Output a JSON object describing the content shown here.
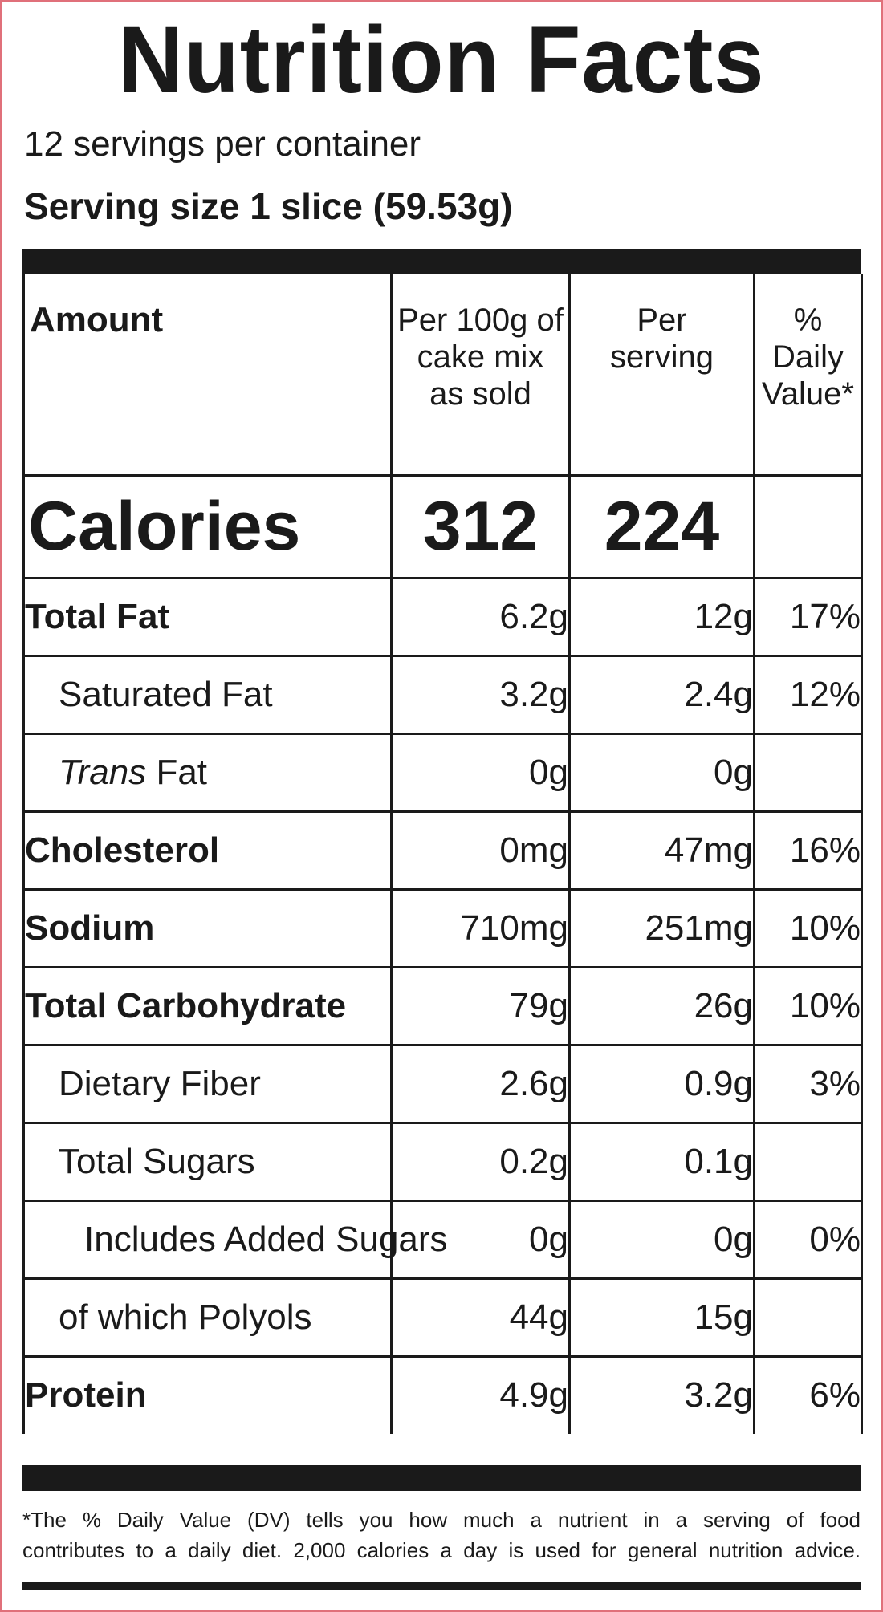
{
  "title": "Nutrition Facts",
  "servings_per_container": "12 servings per container",
  "serving_size": "Serving size 1 slice (59.53g)",
  "columns": {
    "amount": "Amount",
    "per100_lines": [
      "Per 100g of",
      "cake mix",
      "as sold"
    ],
    "perserving_lines": [
      "Per",
      "serving"
    ],
    "dv_lines": [
      "% Daily",
      "Value*"
    ]
  },
  "calories": {
    "label": "Calories",
    "per100": "312",
    "perserving": "224",
    "dv": ""
  },
  "rows": [
    {
      "name": "Total Fat",
      "per100": "6.2g",
      "perserving": "12g",
      "dv": "17%"
    },
    {
      "name": "Saturated Fat",
      "per100": "3.2g",
      "perserving": "2.4g",
      "dv": "12%"
    },
    {
      "name_prefix_italic": "Trans",
      "name": " Fat",
      "per100": "0g",
      "perserving": "0g",
      "dv": ""
    },
    {
      "name": "Cholesterol",
      "per100": "0mg",
      "perserving": "47mg",
      "dv": "16%"
    },
    {
      "name": "Sodium",
      "per100": "710mg",
      "perserving": "251mg",
      "dv": "10%"
    },
    {
      "name": "Total Carbohydrate",
      "per100": "79g",
      "perserving": "26g",
      "dv": "10%"
    },
    {
      "name": "Dietary Fiber",
      "per100": "2.6g",
      "perserving": "0.9g",
      "dv": "3%"
    },
    {
      "name": "Total Sugars",
      "per100": "0.2g",
      "perserving": "0.1g",
      "dv": ""
    },
    {
      "name": "Includes Added Sugars",
      "per100": "0g",
      "perserving": "0g",
      "dv": "0%"
    },
    {
      "name": "of which Polyols",
      "per100": "44g",
      "perserving": "15g",
      "dv": ""
    },
    {
      "name": "Protein",
      "per100": "4.9g",
      "perserving": "3.2g",
      "dv": "6%"
    }
  ],
  "footnote_lines": [
    "*The % Daily Value (DV) tells you how much a nutrient in a serving of food",
    "contributes to a daily diet. 2,000 calories a day is used for general nutrition advice."
  ]
}
